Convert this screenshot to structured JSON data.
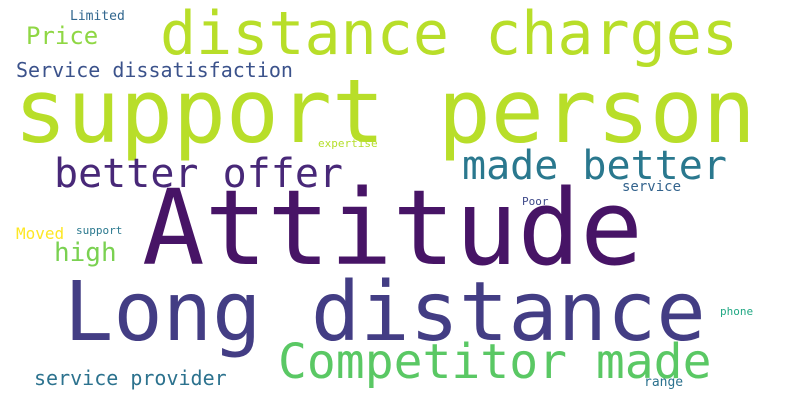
{
  "words": {
    "attitude": {
      "text": "Attitude",
      "color": "#471466"
    },
    "support_person": {
      "text": "support person",
      "color": "#b8de29"
    },
    "long_distance": {
      "text": "Long distance",
      "color": "#433d84"
    },
    "distance_charges": {
      "text": "distance charges",
      "color": "#b8de29"
    },
    "competitor_made": {
      "text": "Competitor made",
      "color": "#5ac864"
    },
    "made_better": {
      "text": "made better",
      "color": "#2a788e"
    },
    "better_offer": {
      "text": "better offer",
      "color": "#482878"
    },
    "service_dissatisfaction": {
      "text": "Service dissatisfaction",
      "color": "#3b528b"
    },
    "price": {
      "text": "Price",
      "color": "#8fd744"
    },
    "high": {
      "text": "high",
      "color": "#7ad151"
    },
    "service_provider": {
      "text": "service provider",
      "color": "#2c728e"
    },
    "limited": {
      "text": "Limited",
      "color": "#31668e"
    },
    "moved": {
      "text": "Moved",
      "color": "#fde725"
    },
    "support": {
      "text": "support",
      "color": "#2a788e"
    },
    "expertise": {
      "text": "expertise",
      "color": "#b5de2b"
    },
    "service": {
      "text": "service",
      "color": "#33638d"
    },
    "poor": {
      "text": "Poor",
      "color": "#3e4989"
    },
    "phone": {
      "text": "phone",
      "color": "#22a884"
    },
    "range": {
      "text": "range",
      "color": "#2c728e"
    }
  }
}
